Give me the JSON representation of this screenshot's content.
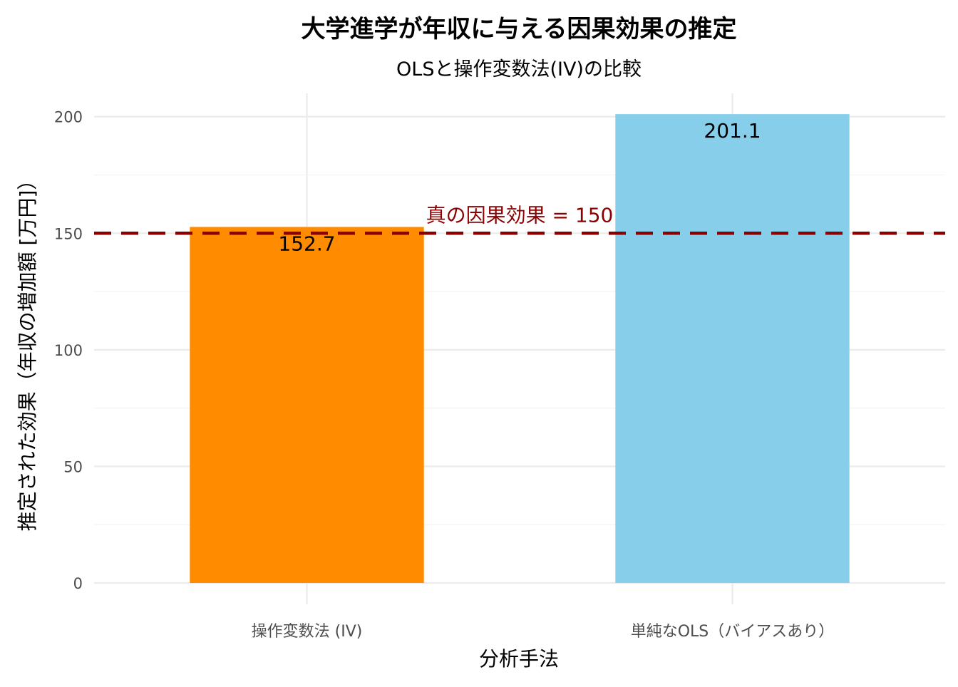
{
  "chart_data": {
    "type": "bar",
    "title": "大学進学が年収に与える因果効果の推定",
    "subtitle": "OLSと操作変数法(IV)の比較",
    "xlabel": "分析手法",
    "ylabel": "推定された効果（年収の増加額 [万円]）",
    "categories": [
      "操作変数法 (IV)",
      "単純なOLS（バイアスあり）"
    ],
    "values": [
      152.7,
      201.1
    ],
    "value_labels": [
      "152.7",
      "201.1"
    ],
    "bar_colors": [
      "#FF8C00",
      "#87CEEB"
    ],
    "ylim": [
      0,
      210
    ],
    "yticks": [
      0,
      50,
      100,
      150,
      200
    ],
    "ytick_labels": [
      "0",
      "50",
      "100",
      "150",
      "200"
    ],
    "grid": true,
    "legend": "none",
    "reference_line": {
      "value": 150,
      "label": "真の因果効果 = 150",
      "color": "#8B0000",
      "style": "dashed"
    }
  }
}
